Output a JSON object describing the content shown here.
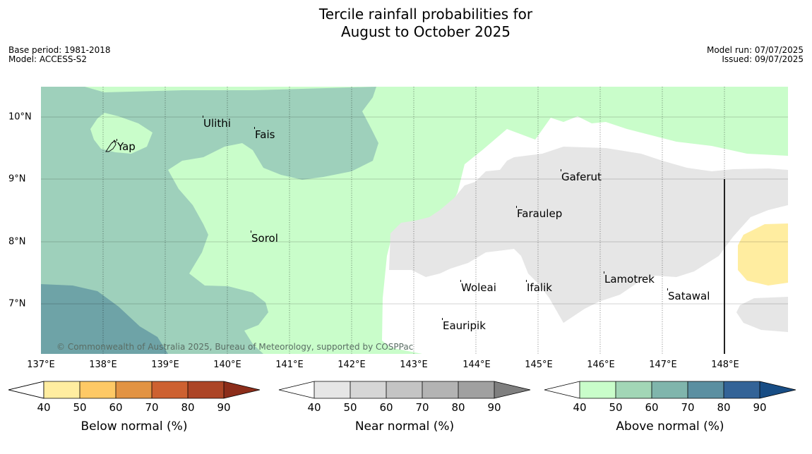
{
  "title_line1": "Tercile rainfall probabilities for",
  "title_line2": "August to October 2025",
  "meta_left": [
    "Base period: 1981-2018",
    "Model: ACCESS-S2"
  ],
  "meta_right": [
    "Model run: 07/07/2025",
    "Issued: 09/07/2025"
  ],
  "longitude_labels": [
    "137°E",
    "138°E",
    "139°E",
    "140°E",
    "141°E",
    "142°E",
    "143°E",
    "144°E",
    "145°E",
    "146°E",
    "147°E",
    "148°E"
  ],
  "latitude_labels": [
    "10°N",
    "9°N",
    "8°N",
    "7°N"
  ],
  "places": [
    {
      "name": "Yap",
      "lon": 138.2,
      "lat": 9.52
    },
    {
      "name": "Ulithi",
      "lon": 139.65,
      "lat": 9.9
    },
    {
      "name": "Fais",
      "lon": 140.4,
      "lat": 9.72
    },
    {
      "name": "Gaferut",
      "lon": 145.35,
      "lat": 9.03
    },
    {
      "name": "Faraulep",
      "lon": 144.6,
      "lat": 8.44
    },
    {
      "name": "Sorol",
      "lon": 140.4,
      "lat": 8.05
    },
    {
      "name": "Lamotrek",
      "lon": 146.05,
      "lat": 7.38
    },
    {
      "name": "Woleai",
      "lon": 143.8,
      "lat": 7.25
    },
    {
      "name": "Ifalik",
      "lon": 144.65,
      "lat": 7.25
    },
    {
      "name": "Satawal",
      "lon": 147.07,
      "lat": 7.12
    },
    {
      "name": "Eauripik",
      "lon": 143.45,
      "lat": 6.65
    }
  ],
  "copyright": "© Commonwealth of Australia 2025, Bureau of Meteorology, supported by COSPPac",
  "colorbars": [
    {
      "label": "Below normal (%)",
      "colors": [
        "#ffffff",
        "#ffeda0",
        "#fec965",
        "#e29343",
        "#cd6131",
        "#ac4526",
        "#8c2d1a"
      ]
    },
    {
      "label": "Near normal (%)",
      "colors": [
        "#ffffff",
        "#e6e6e6",
        "#d6d6d6",
        "#c4c4c4",
        "#b3b3b3",
        "#a0a0a0",
        "#7f7f7f"
      ]
    },
    {
      "label": "Above normal (%)",
      "colors": [
        "#ffffff",
        "#c9fdca",
        "#a2d6b6",
        "#80b5ac",
        "#5b8fa1",
        "#336397",
        "#184d85"
      ]
    }
  ],
  "colorbar_ticks": [
    "40",
    "50",
    "60",
    "70",
    "80",
    "90"
  ],
  "colors": {
    "above_50": "#c9fdca",
    "above_60": "#9ed0bb",
    "above_70": "#6ea3a7",
    "near_50": "#e6e6e6",
    "below_50": "#ffeda0",
    "no_dominant": "#ffffff"
  }
}
